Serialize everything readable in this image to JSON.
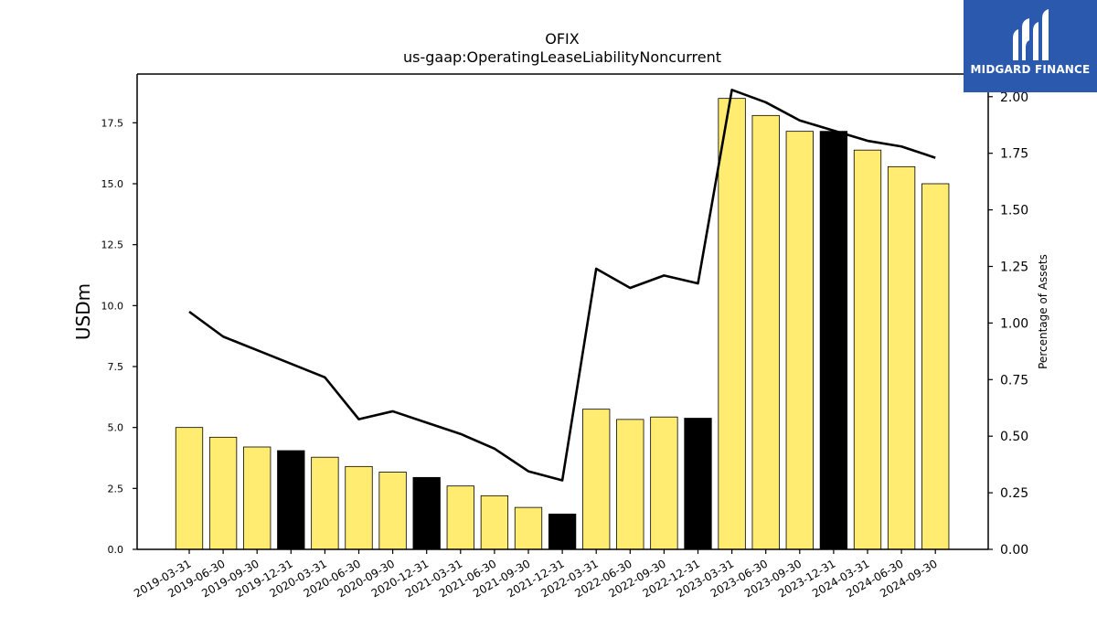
{
  "chart_data": {
    "type": "bar",
    "title": "OFIX",
    "subtitle": "us-gaap:OperatingLeaseLiabilityNoncurrent",
    "ylabel": "USDm",
    "y2label": "Percentage of Assets",
    "ylim": [
      0,
      19.5
    ],
    "y2lim": [
      0,
      2.1
    ],
    "yticks": [
      "0.0",
      "2.5",
      "5.0",
      "7.5",
      "10.0",
      "12.5",
      "15.0",
      "17.5"
    ],
    "y2ticks": [
      "0.00",
      "0.25",
      "0.50",
      "0.75",
      "1.00",
      "1.25",
      "1.50",
      "1.75",
      "2.00"
    ],
    "categories": [
      "2019-03-31",
      "2019-06-30",
      "2019-09-30",
      "2019-12-31",
      "2020-03-31",
      "2020-06-30",
      "2020-09-30",
      "2020-12-31",
      "2021-03-31",
      "2021-06-30",
      "2021-09-30",
      "2021-12-31",
      "2022-03-31",
      "2022-06-30",
      "2022-09-30",
      "2022-12-31",
      "2023-03-31",
      "2023-06-30",
      "2023-09-30",
      "2023-12-31",
      "2024-03-31",
      "2024-06-30",
      "2024-09-30"
    ],
    "series": [
      {
        "values": [
          5.0,
          4.6,
          4.2,
          4.05,
          3.78,
          3.4,
          3.17,
          2.95,
          2.6,
          2.2,
          1.72,
          1.45,
          5.75,
          5.33,
          5.43,
          5.38,
          18.5,
          17.8,
          17.15,
          17.15,
          16.38,
          15.7,
          15.0
        ],
        "highlight": [
          false,
          false,
          false,
          true,
          false,
          false,
          false,
          true,
          false,
          false,
          false,
          true,
          false,
          false,
          false,
          true,
          false,
          false,
          false,
          true,
          false,
          false,
          false
        ],
        "color": "#ffec70",
        "highlight_color": "#000000",
        "axis": "left"
      },
      {
        "type": "line",
        "values": [
          1.05,
          0.94,
          0.88,
          0.82,
          0.76,
          0.575,
          0.61,
          0.56,
          0.51,
          0.445,
          0.345,
          0.305,
          1.24,
          1.155,
          1.21,
          1.175,
          2.03,
          1.975,
          1.895,
          1.85,
          1.805,
          1.78,
          1.73
        ],
        "color": "#000000",
        "axis": "right"
      }
    ],
    "grid": false
  },
  "logo": {
    "text": "MIDGARD FINANCE",
    "color": "#2b59ad"
  }
}
